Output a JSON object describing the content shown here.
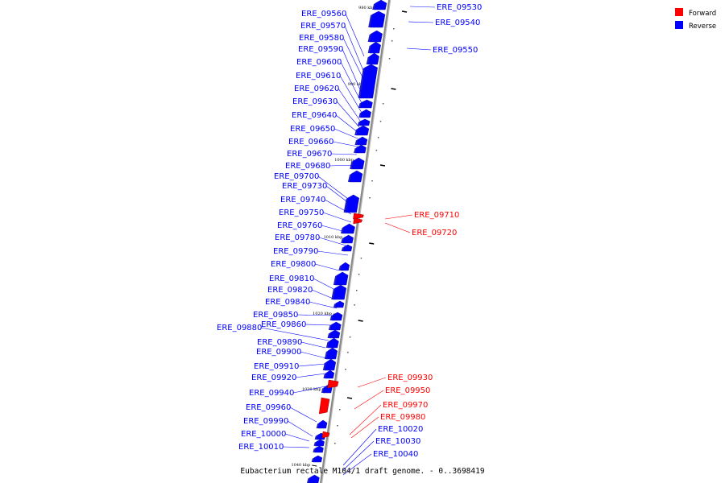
{
  "caption": "Eubacterium rectale M104/1 draft genome. - 0..3698419",
  "colors": {
    "forward": "#ff0000",
    "reverse": "#0000ff",
    "axis": "#888888"
  },
  "legend": [
    {
      "label": "Forward",
      "color": "#ff0000"
    },
    {
      "label": "Reverse",
      "color": "#0000ff"
    }
  ],
  "ticks": [
    "980 kbp",
    "990 kbp",
    "1000 kbp",
    "1010 kbp",
    "1020 kbp",
    "1030 kbp",
    "1040 kbp"
  ],
  "genes_right": [
    {
      "label": "ERE_09530",
      "strand": "reverse"
    },
    {
      "label": "ERE_09540",
      "strand": "reverse"
    },
    {
      "label": "ERE_09550",
      "strand": "reverse"
    },
    {
      "label": "ERE_09710",
      "strand": "forward"
    },
    {
      "label": "ERE_09720",
      "strand": "forward"
    },
    {
      "label": "ERE_09930",
      "strand": "forward"
    },
    {
      "label": "ERE_09950",
      "strand": "forward"
    },
    {
      "label": "ERE_09970",
      "strand": "forward"
    },
    {
      "label": "ERE_09980",
      "strand": "forward"
    },
    {
      "label": "ERE_10020",
      "strand": "reverse"
    },
    {
      "label": "ERE_10030",
      "strand": "reverse"
    },
    {
      "label": "ERE_10040",
      "strand": "reverse"
    }
  ],
  "genes_left": [
    {
      "label": "ERE_09560",
      "strand": "reverse"
    },
    {
      "label": "ERE_09570",
      "strand": "reverse"
    },
    {
      "label": "ERE_09580",
      "strand": "reverse"
    },
    {
      "label": "ERE_09590",
      "strand": "reverse"
    },
    {
      "label": "ERE_09600",
      "strand": "reverse"
    },
    {
      "label": "ERE_09610",
      "strand": "reverse"
    },
    {
      "label": "ERE_09620",
      "strand": "reverse"
    },
    {
      "label": "ERE_09630",
      "strand": "reverse"
    },
    {
      "label": "ERE_09640",
      "strand": "reverse"
    },
    {
      "label": "ERE_09650",
      "strand": "reverse"
    },
    {
      "label": "ERE_09660",
      "strand": "reverse"
    },
    {
      "label": "ERE_09670",
      "strand": "reverse"
    },
    {
      "label": "ERE_09680",
      "strand": "reverse"
    },
    {
      "label": "ERE_09700",
      "strand": "reverse"
    },
    {
      "label": "ERE_09730",
      "strand": "reverse"
    },
    {
      "label": "ERE_09740",
      "strand": "reverse"
    },
    {
      "label": "ERE_09750",
      "strand": "reverse"
    },
    {
      "label": "ERE_09760",
      "strand": "reverse"
    },
    {
      "label": "ERE_09780",
      "strand": "reverse"
    },
    {
      "label": "ERE_09790",
      "strand": "reverse"
    },
    {
      "label": "ERE_09800",
      "strand": "reverse"
    },
    {
      "label": "ERE_09810",
      "strand": "reverse"
    },
    {
      "label": "ERE_09820",
      "strand": "reverse"
    },
    {
      "label": "ERE_09840",
      "strand": "reverse"
    },
    {
      "label": "ERE_09850",
      "strand": "reverse"
    },
    {
      "label": "ERE_09860",
      "strand": "reverse"
    },
    {
      "label": "ERE_09880",
      "strand": "reverse"
    },
    {
      "label": "ERE_09890",
      "strand": "reverse"
    },
    {
      "label": "ERE_09900",
      "strand": "reverse"
    },
    {
      "label": "ERE_09910",
      "strand": "reverse"
    },
    {
      "label": "ERE_09920",
      "strand": "reverse"
    },
    {
      "label": "ERE_09940",
      "strand": "reverse"
    },
    {
      "label": "ERE_09960",
      "strand": "reverse"
    },
    {
      "label": "ERE_09990",
      "strand": "reverse"
    },
    {
      "label": "ERE_10000",
      "strand": "reverse"
    },
    {
      "label": "ERE_10010",
      "strand": "reverse"
    }
  ]
}
